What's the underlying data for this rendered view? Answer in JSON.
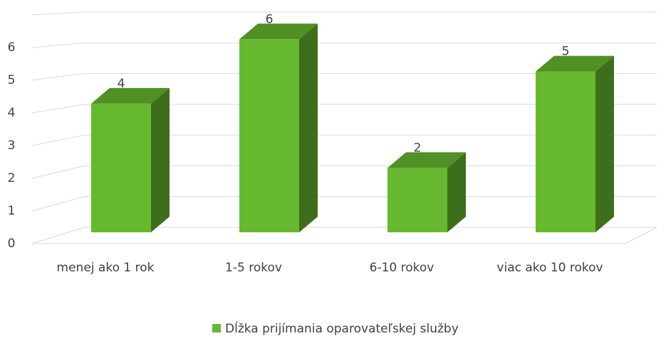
{
  "chart_data": {
    "type": "bar3d",
    "categories": [
      "menej ako 1 rok",
      "1-5 rokov",
      "6-10 rokov",
      "viac ako 10 rokov"
    ],
    "series": [
      {
        "name": "Dĺžka prijímania oparovateľskej služby",
        "color": "#66b82e",
        "values": [
          4,
          6,
          2,
          5
        ]
      }
    ],
    "ylim": [
      0,
      7
    ],
    "yticks": [
      0,
      1,
      2,
      3,
      4,
      5,
      6
    ],
    "grid": true,
    "legend": "bottom"
  }
}
